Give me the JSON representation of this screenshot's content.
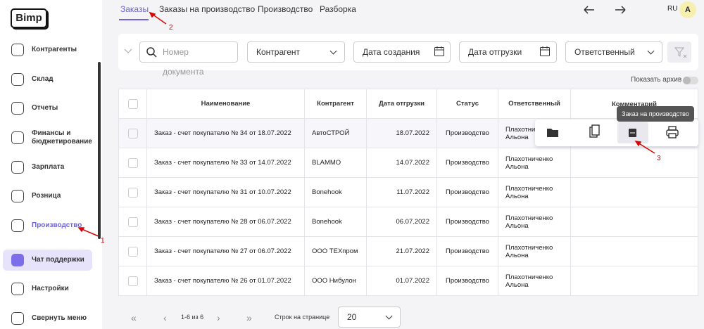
{
  "logo": "Bimp",
  "sidebar": {
    "items": [
      "Контрагенты",
      "Склад",
      "Отчеты",
      "Финансы и бюджетирование",
      "Зарплата",
      "Розница",
      "Производство",
      "Чат поддержки",
      "Настройки",
      "Свернуть меню"
    ]
  },
  "tabs": [
    "Заказы",
    "Заказы на производство",
    "Производство",
    "Разборка"
  ],
  "header": {
    "language": "RU",
    "avatar": "A"
  },
  "filters": {
    "document_number": "Номер документа",
    "counterparty": "Контрагент",
    "created_date": "Дата создания",
    "shipping_date": "Дата отгрузки",
    "responsible": "Ответственный"
  },
  "archive_toggle": "Показать архив",
  "table": {
    "columns": [
      "Наименование",
      "Контрагент",
      "Дата отгрузки",
      "Статус",
      "Ответственный",
      "Комментарий"
    ],
    "rows": [
      [
        "Заказ - счет покупателю № 34 от 18.07.2022",
        "АвтоСТРОЙ",
        "18.07.2022",
        "Производство",
        "Плахотниченко Альона"
      ],
      [
        "Заказ - счет покупателю № 33 от 14.07.2022",
        "BLAMMO",
        "14.07.2022",
        "Производство",
        "Плахотниченко Альона"
      ],
      [
        "Заказ - счет покупателю № 31 от 10.07.2022",
        "Bonehook",
        "11.07.2022",
        "Производство",
        "Плахотниченко Альона"
      ],
      [
        "Заказ - счет покупателю № 28 от 06.07.2022",
        "Bonehook",
        "06.07.2022",
        "Производство",
        "Плахотниченко Альона"
      ],
      [
        "Заказ - счет покупателю № 27 от 06.07.2022",
        "ООО ТЕХпром",
        "21.07.2022",
        "Производство",
        "Плахотниченко Альона"
      ],
      [
        "Заказ - счет покупателю № 26 от 01.07.2022",
        "ООО Нибулон",
        "01.07.2022",
        "Производство",
        "Плахотниченко Альона"
      ]
    ]
  },
  "tooltip": "Заказ на производство",
  "annotations": [
    "1",
    "2",
    "3"
  ],
  "pagination": {
    "range": "1-6 из 6",
    "rows_per_page_label": "Строк на странице",
    "rows_per_page": "20"
  }
}
